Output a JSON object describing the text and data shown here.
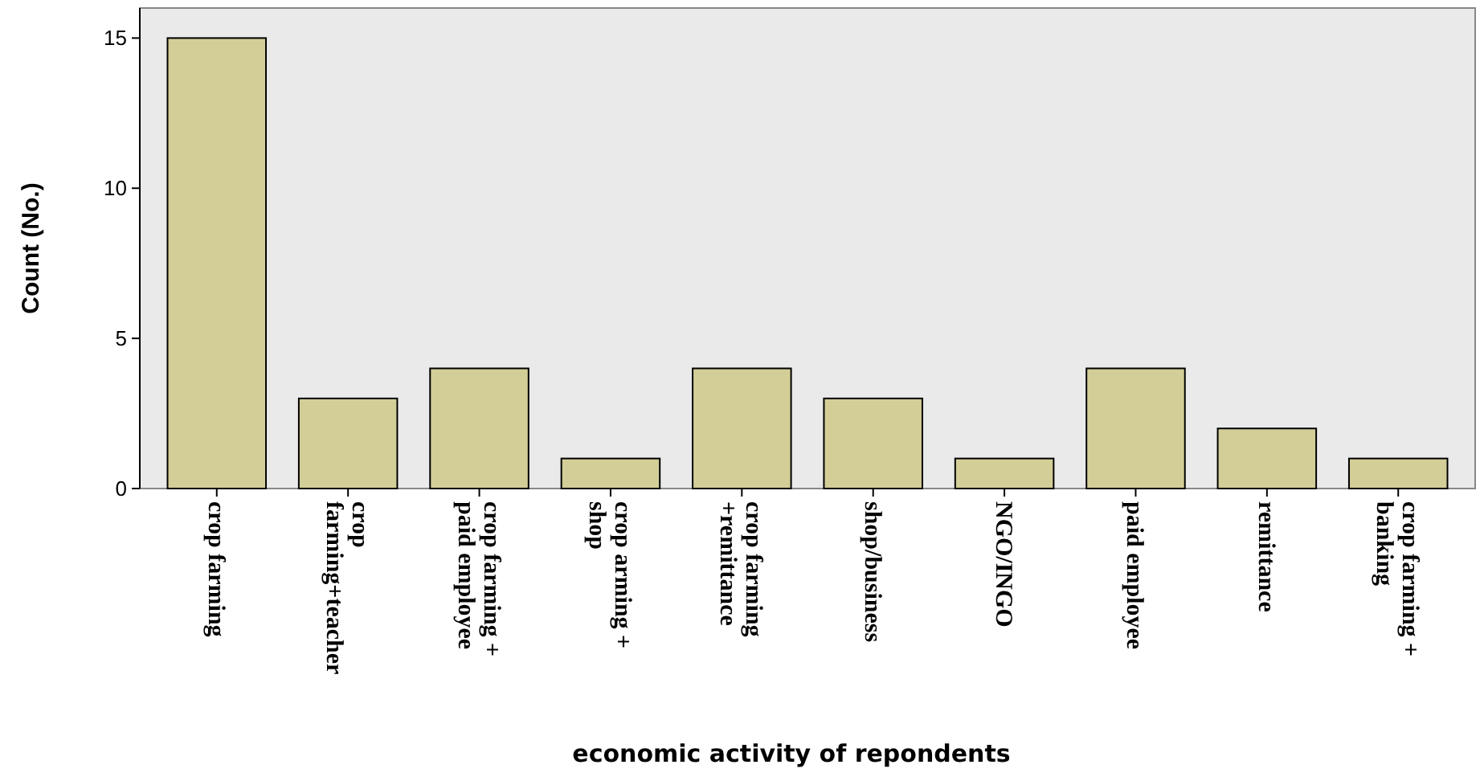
{
  "chart_data": {
    "type": "bar",
    "xlabel": "economic activity of repondents",
    "ylabel": "Count (No.)",
    "categories": [
      "crop farming",
      "crop farming+teacher",
      "crop farming + paid employee",
      "crop arming + shop",
      "crop farming +remittance",
      "shop/business",
      "NGO/INGO",
      "paid employee",
      "remittance",
      "crop farming + banking"
    ],
    "values": [
      15,
      3,
      4,
      1,
      4,
      3,
      1,
      4,
      2,
      1
    ],
    "color": "#d3ce98",
    "ylim": [
      0,
      16
    ],
    "yticks": [
      0,
      5,
      10,
      15
    ],
    "grid": false
  }
}
